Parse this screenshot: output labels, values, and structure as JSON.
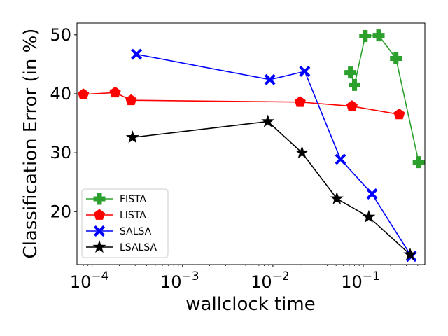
{
  "chart_data": {
    "type": "line",
    "title": "",
    "xlabel": "wallclock time",
    "ylabel": "Classification Error (in %)",
    "xscale": "log",
    "xlim": [
      6.8e-05,
      0.48
    ],
    "ylim": [
      11,
      52
    ],
    "x_ticks": [
      {
        "value": 0.0001,
        "base": "10",
        "exp": "−4"
      },
      {
        "value": 0.001,
        "base": "10",
        "exp": "−3"
      },
      {
        "value": 0.01,
        "base": "10",
        "exp": "−2"
      },
      {
        "value": 0.1,
        "base": "10",
        "exp": "−1"
      }
    ],
    "y_ticks": [
      20,
      30,
      40,
      50
    ],
    "legend_position": "lower-left",
    "series": [
      {
        "name": "FISTA",
        "color": "#2ca02c",
        "marker": "plus",
        "x": [
          0.072,
          0.08,
          0.105,
          0.148,
          0.23,
          0.41
        ],
        "y": [
          43.6,
          41.5,
          49.8,
          49.9,
          46.0,
          28.4
        ]
      },
      {
        "name": "LISTA",
        "color": "#ff0000",
        "marker": "pentagon",
        "x": [
          8e-05,
          0.00018,
          0.00027,
          0.02,
          0.075,
          0.25
        ],
        "y": [
          39.9,
          40.2,
          38.9,
          38.6,
          37.9,
          36.5
        ]
      },
      {
        "name": "SALSA",
        "color": "#0000ff",
        "marker": "x",
        "x": [
          0.00031,
          0.0093,
          0.0225,
          0.056,
          0.125,
          0.34
        ],
        "y": [
          46.7,
          42.4,
          43.8,
          28.9,
          23.0,
          12.4
        ]
      },
      {
        "name": "LSALSA",
        "color": "#000000",
        "marker": "star",
        "x": [
          0.00028,
          0.0088,
          0.021,
          0.051,
          0.115,
          0.33
        ],
        "y": [
          32.6,
          35.3,
          30.0,
          22.2,
          19.1,
          12.7
        ]
      }
    ]
  }
}
